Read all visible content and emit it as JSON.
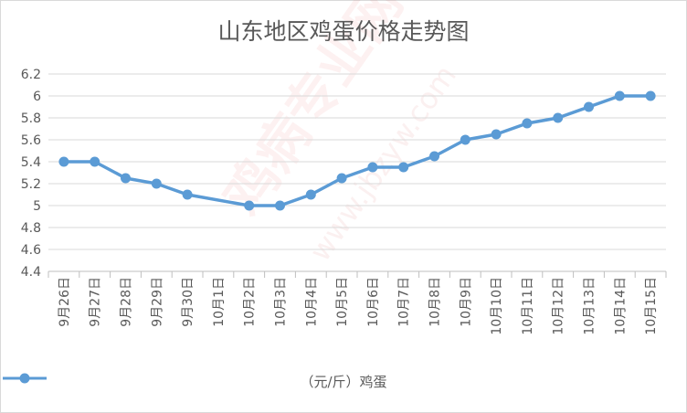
{
  "watermark": {
    "main": "鸡病专业网",
    "url": "www.jbzyw.com"
  },
  "chart_data": {
    "type": "line",
    "title": "山东地区鸡蛋价格走势图",
    "categories": [
      "9月26日",
      "9月27日",
      "9月28日",
      "9月29日",
      "9月30日",
      "10月1日",
      "10月2日",
      "10月3日",
      "10月4日",
      "10月5日",
      "10月6日",
      "10月7日",
      "10月8日",
      "10月9日",
      "10月10日",
      "10月11日",
      "10月12日",
      "10月13日",
      "10月14日",
      "10月15日"
    ],
    "series": [
      {
        "name": "（元/斤）鸡蛋",
        "values": [
          5.4,
          5.4,
          5.25,
          5.2,
          5.1,
          null,
          5.0,
          5.0,
          5.1,
          5.25,
          5.35,
          5.35,
          5.45,
          5.6,
          5.65,
          5.75,
          5.8,
          5.9,
          6.0,
          6.0
        ],
        "color": "#5b9bd5"
      }
    ],
    "yticks": [
      "4.4",
      "4.6",
      "4.8",
      "5",
      "5.2",
      "5.4",
      "5.6",
      "5.8",
      "6",
      "6.2"
    ],
    "ylim": [
      4.4,
      6.2
    ],
    "xlabel": "",
    "ylabel": "",
    "grid": true,
    "legend_position": "bottom"
  }
}
